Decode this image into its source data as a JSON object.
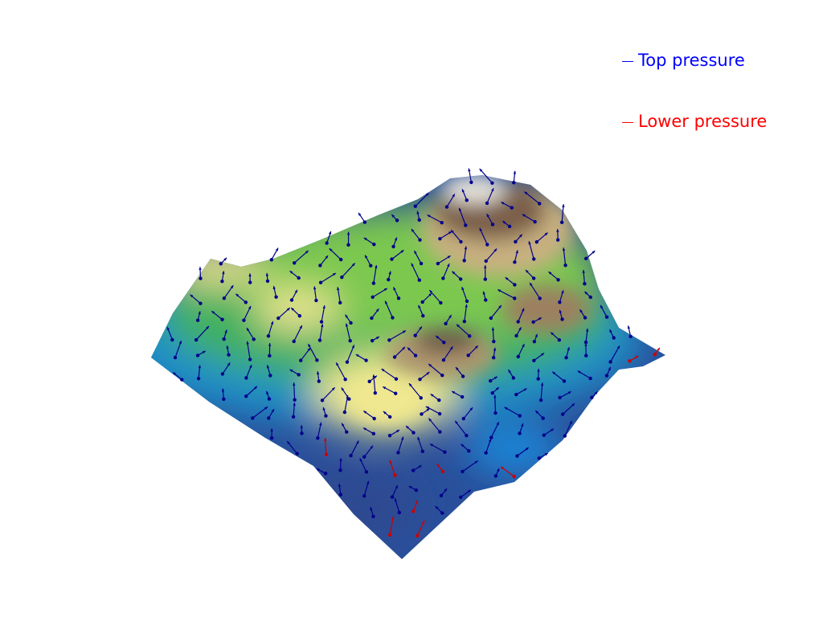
{
  "legend": {
    "items": [
      {
        "label": "Top pressure",
        "color": "#0000ff"
      },
      {
        "label": "Lower pressure",
        "color": "#ff0000"
      }
    ]
  },
  "colors": {
    "colormap": "gist_earth",
    "top_arrow": "#00008b",
    "lower_arrow": "#cc0000"
  }
}
